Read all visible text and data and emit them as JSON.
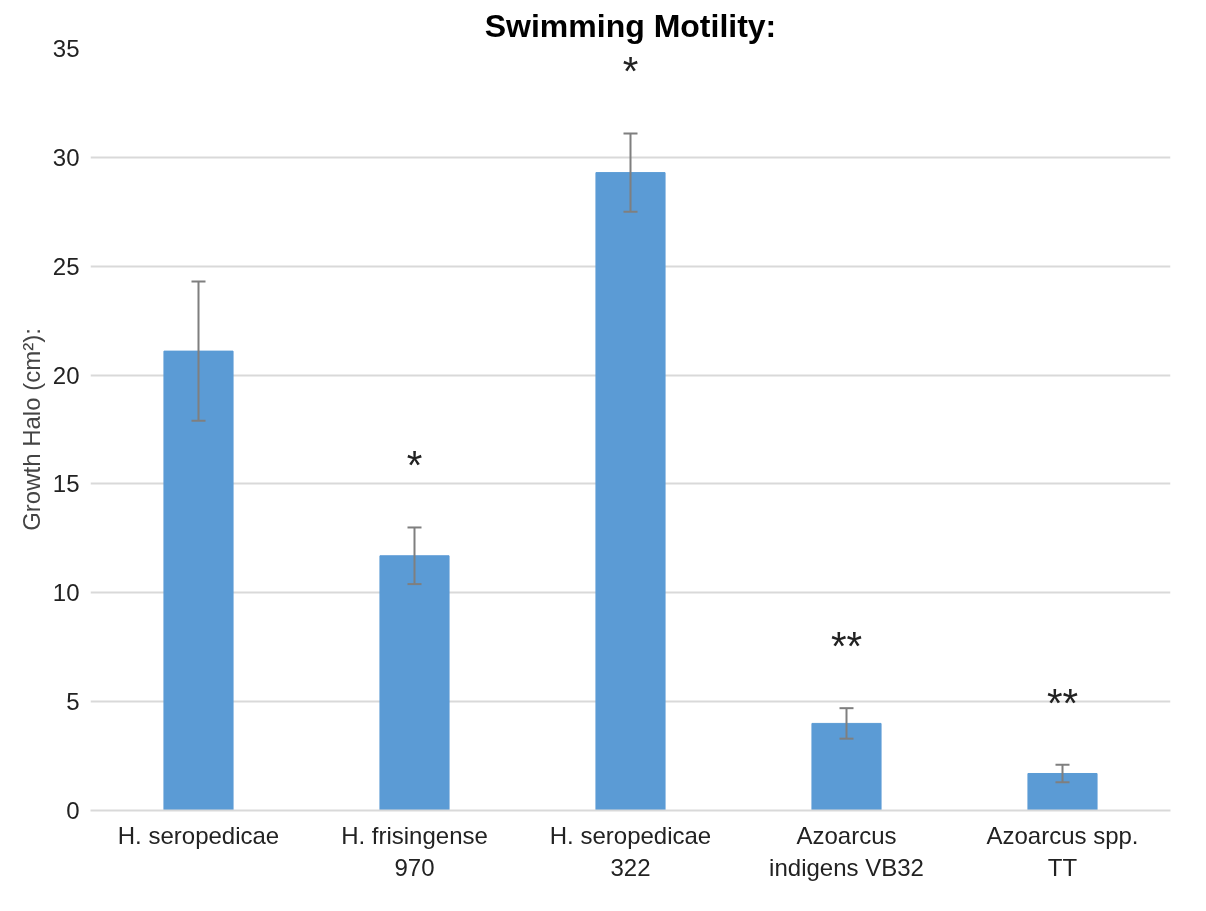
{
  "chart_data": {
    "type": "bar",
    "title": "Swimming Motility:",
    "ylabel": "Growth Halo (cm²):",
    "categories": [
      "H. seropedicae",
      "H. frisingense\n970",
      "H. seropedicae\n322",
      "Azoarcus\nindigens VB32",
      "Azoarcus spp.\nTT"
    ],
    "values": [
      21.1,
      11.7,
      29.3,
      4.0,
      1.7
    ],
    "errors": [
      3.2,
      1.3,
      1.8,
      0.7,
      0.4
    ],
    "color": "#5b9bd5",
    "ylim": [
      0,
      35
    ],
    "yticks": [
      0,
      5,
      10,
      15,
      20,
      25,
      30,
      35
    ],
    "grid": "y",
    "annotations": [
      "*",
      "*",
      "**",
      "**"
    ]
  }
}
